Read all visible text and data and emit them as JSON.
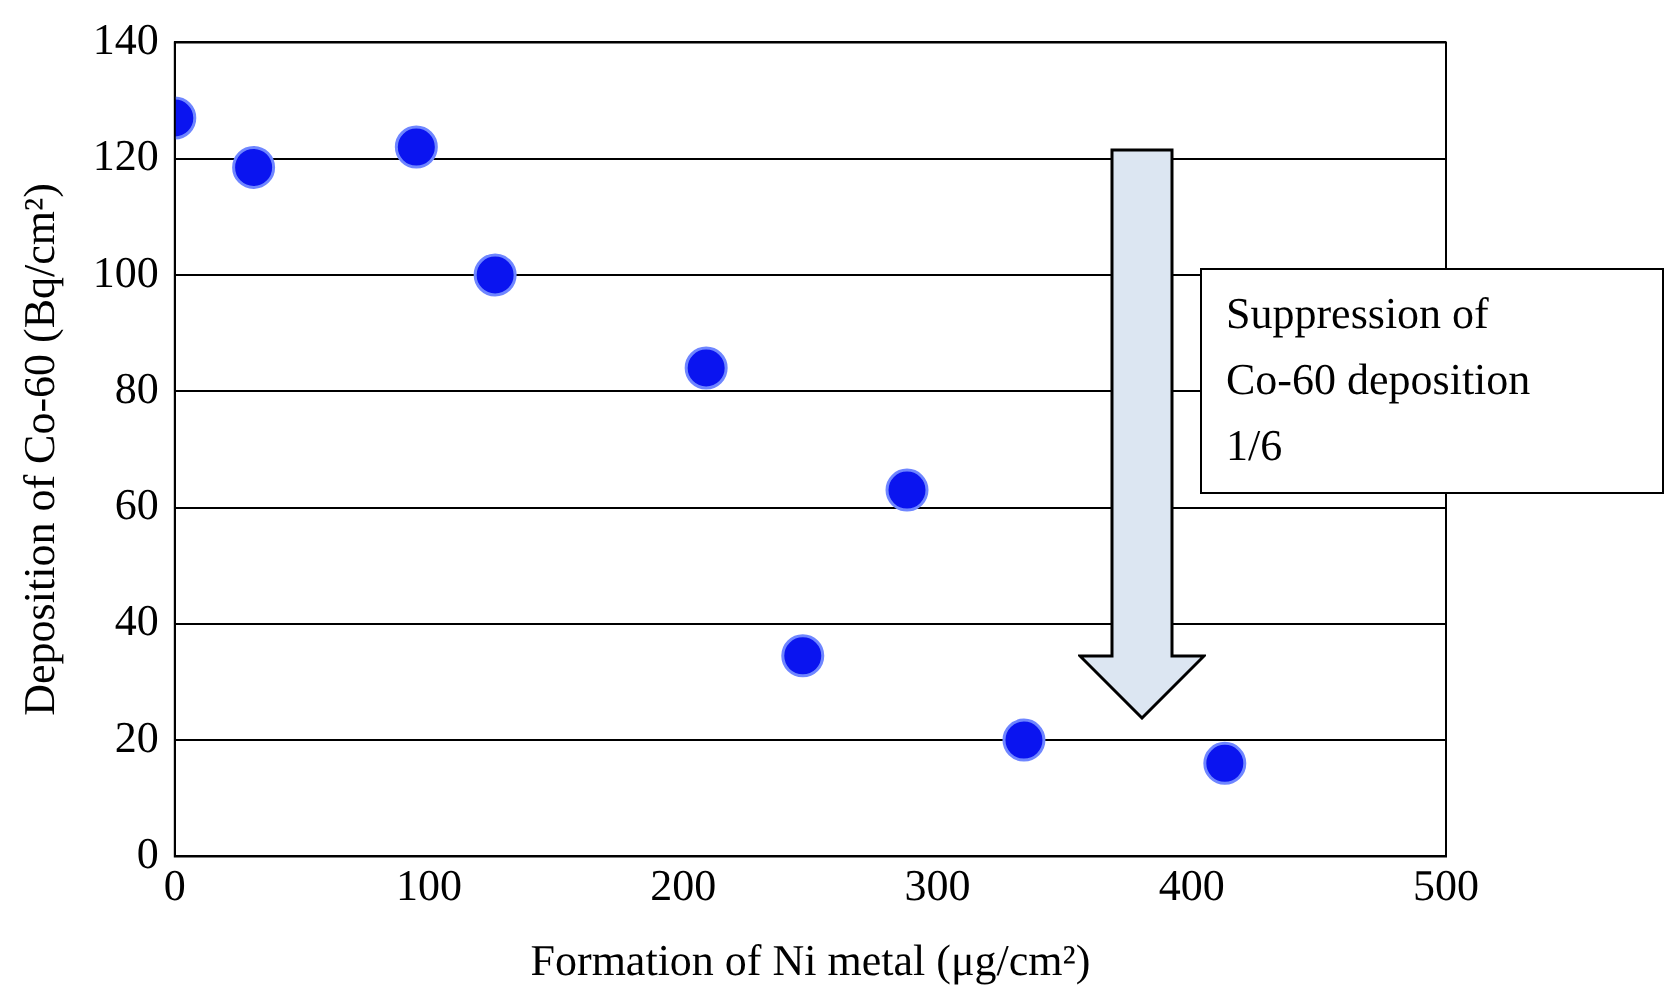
{
  "chart_data": {
    "type": "scatter",
    "xlabel": "Formation of Ni metal (μg/cm²)",
    "ylabel": "Deposition of Co-60 (Bq/cm²)",
    "x": [
      0,
      31,
      95,
      126,
      209,
      288,
      247,
      334,
      413
    ],
    "series": [
      {
        "color": "#0a14f0",
        "values": [
          127,
          118.5,
          122,
          100,
          84,
          63,
          34.5,
          20,
          16
        ]
      }
    ],
    "xlim": [
      0,
      500
    ],
    "xticks": [
      0,
      100,
      200,
      300,
      400,
      500
    ],
    "ylim": [
      0,
      140
    ],
    "yticks": [
      0,
      20,
      40,
      60,
      80,
      100,
      120,
      140
    ],
    "grid": "y",
    "legend": false,
    "marker": "circle",
    "annotations": [
      "Suppression of\nCo-60 deposition\n1/6"
    ]
  }
}
